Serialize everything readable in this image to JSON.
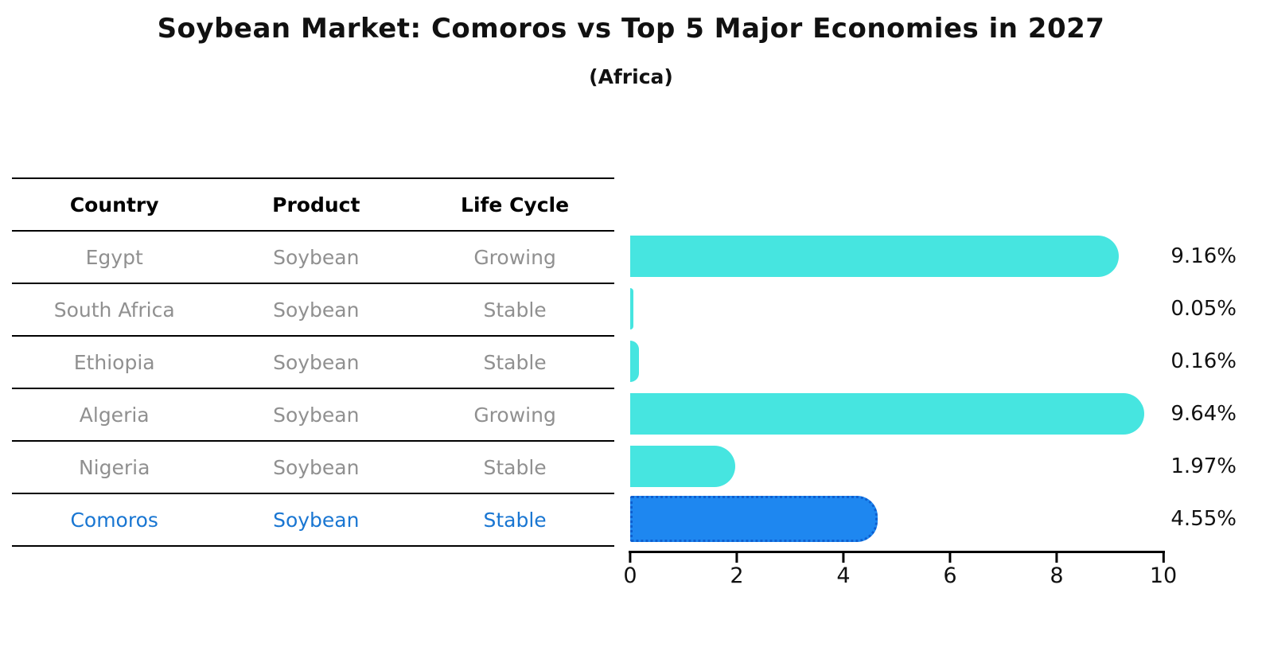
{
  "chart_data": {
    "type": "bar",
    "orientation": "horizontal",
    "title": "Soybean Market: Comoros vs Top 5 Major Economies in 2027",
    "subtitle": "(Africa)",
    "categories": [
      "Egypt",
      "South Africa",
      "Ethiopia",
      "Algeria",
      "Nigeria",
      "Comoros"
    ],
    "values": [
      9.16,
      0.05,
      0.16,
      9.64,
      1.97,
      4.55
    ],
    "value_labels": [
      "9.16%",
      "0.05%",
      "0.16%",
      "9.64%",
      "1.97%",
      "4.55%"
    ],
    "xlim": [
      0,
      10
    ],
    "x_ticks": [
      "0",
      "2",
      "4",
      "6",
      "8",
      "10"
    ],
    "grid": false,
    "legend": false,
    "bar_color": "#46E5E0",
    "highlight_color": "#1E87F0",
    "highlight_border_color": "#0E5FD0",
    "highlight_index": 5
  },
  "table": {
    "headers": [
      "Country",
      "Product",
      "Life Cycle"
    ],
    "rows": [
      {
        "country": "Egypt",
        "product": "Soybean",
        "life_cycle": "Growing"
      },
      {
        "country": "South Africa",
        "product": "Soybean",
        "life_cycle": "Stable"
      },
      {
        "country": "Ethiopia",
        "product": "Soybean",
        "life_cycle": "Stable"
      },
      {
        "country": "Algeria",
        "product": "Soybean",
        "life_cycle": "Growing"
      },
      {
        "country": "Nigeria",
        "product": "Soybean",
        "life_cycle": "Stable"
      },
      {
        "country": "Comoros",
        "product": "Soybean",
        "life_cycle": "Stable"
      }
    ],
    "text_color": "#909090",
    "highlight_text_color": "#1976D2"
  }
}
